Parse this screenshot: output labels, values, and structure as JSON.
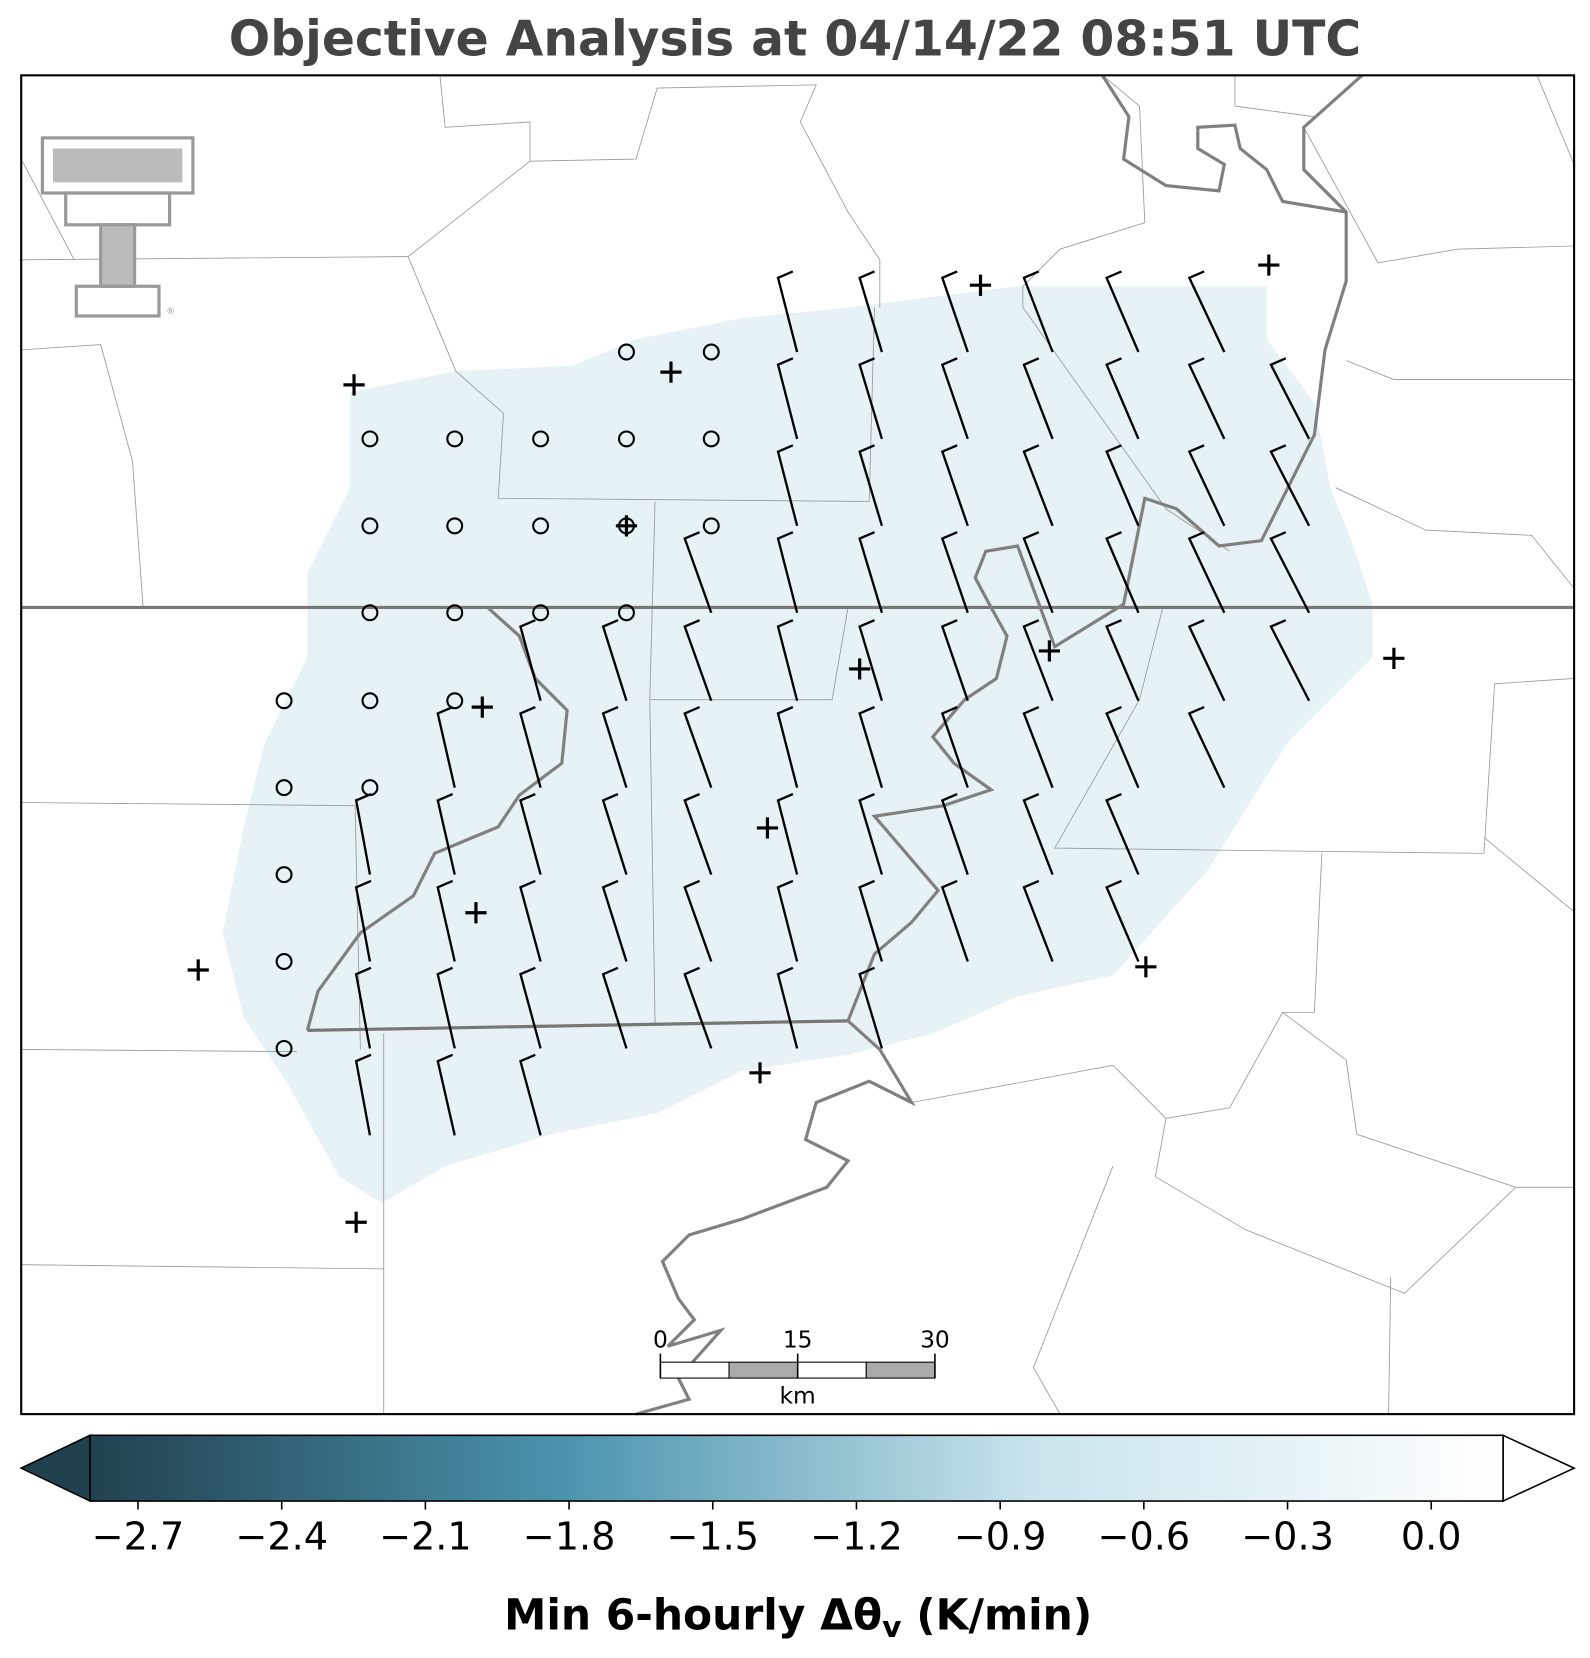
{
  "title": "Objective Analysis at 04/14/22 08:51 UTC",
  "colorbar": {
    "label": {
      "prefix": "Min 6-hourly Δθ",
      "subscript": "v",
      "suffix": "(K/min)"
    },
    "clim": [
      -2.8,
      0.15
    ],
    "colors": [
      "#21414f",
      "#4a93ad",
      "#c8e4ec",
      "#ffffff"
    ],
    "ticks": [
      {
        "value": -2.7,
        "label": "−2.7"
      },
      {
        "value": -2.4,
        "label": "−2.4"
      },
      {
        "value": -2.1,
        "label": "−2.1"
      },
      {
        "value": -1.8,
        "label": "−1.8"
      },
      {
        "value": -1.5,
        "label": "−1.5"
      },
      {
        "value": -1.2,
        "label": "−1.2"
      },
      {
        "value": -0.9,
        "label": "−0.9"
      },
      {
        "value": -0.6,
        "label": "−0.6"
      },
      {
        "value": -0.3,
        "label": "−0.3"
      },
      {
        "value": 0,
        "label": "0.0"
      }
    ]
  },
  "scale_bar": {
    "ticks": [
      0,
      15,
      30
    ],
    "unit": "km"
  }
}
